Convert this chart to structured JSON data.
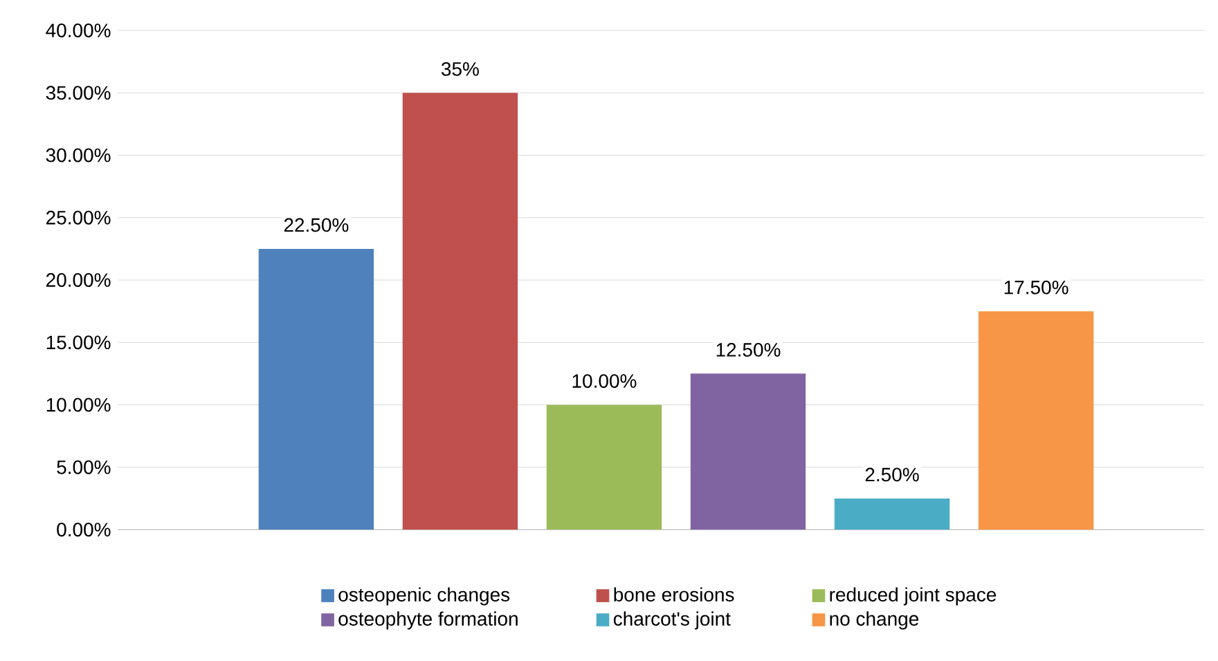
{
  "chart_data": {
    "type": "bar",
    "categories": [
      null
    ],
    "series": [
      {
        "name": "osteopenic changes",
        "color": "#4f81bd",
        "values": [
          22.5
        ],
        "value_labels": [
          "22.50%"
        ]
      },
      {
        "name": "bone erosions",
        "color": "#c0504d",
        "values": [
          35
        ],
        "value_labels": [
          "35%"
        ]
      },
      {
        "name": "reduced joint space",
        "color": "#9bbb59",
        "values": [
          10
        ],
        "value_labels": [
          "10.00%"
        ]
      },
      {
        "name": "osteophyte formation",
        "color": "#8064a2",
        "values": [
          12.5
        ],
        "value_labels": [
          "12.50%"
        ]
      },
      {
        "name": "charcot's joint",
        "color": "#4bacc6",
        "values": [
          2.5
        ],
        "value_labels": [
          "2.50%"
        ]
      },
      {
        "name": "no change",
        "color": "#f79646",
        "values": [
          17.5
        ],
        "value_labels": [
          "17.50%"
        ]
      }
    ],
    "ylim": [
      0,
      40
    ],
    "yticks": [
      {
        "value": 0,
        "label": "0.00%"
      },
      {
        "value": 5,
        "label": "5.00%"
      },
      {
        "value": 10,
        "label": "10.00%"
      },
      {
        "value": 15,
        "label": "15.00%"
      },
      {
        "value": 20,
        "label": "20.00%"
      },
      {
        "value": 25,
        "label": "25.00%"
      },
      {
        "value": 30,
        "label": "30.00%"
      },
      {
        "value": 35,
        "label": "35.00%"
      },
      {
        "value": 40,
        "label": "40.00%"
      }
    ],
    "grid": "y",
    "legend": "bottom"
  }
}
